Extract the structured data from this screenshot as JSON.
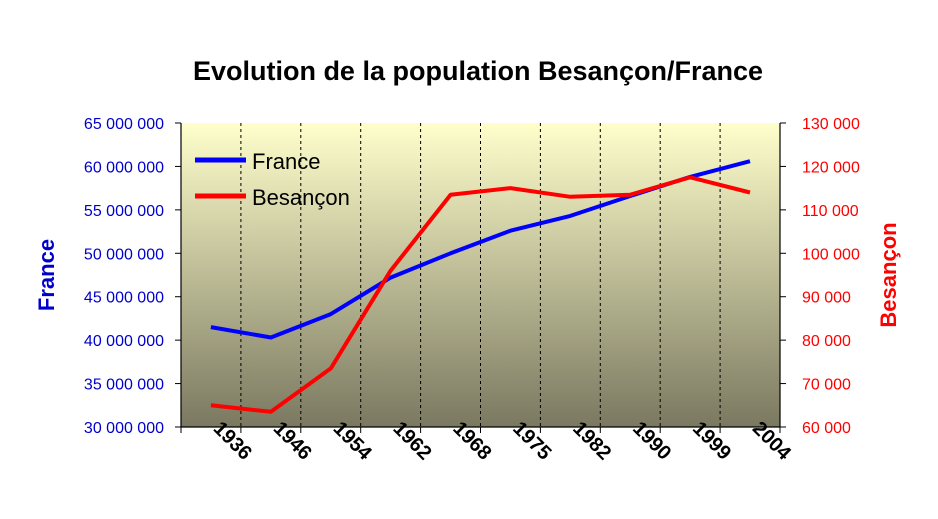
{
  "chart_data": {
    "type": "line",
    "title": "Evolution de la population Besançon/France",
    "categories": [
      "1936",
      "1946",
      "1954",
      "1962",
      "1968",
      "1975",
      "1982",
      "1990",
      "1999",
      "2004"
    ],
    "series": [
      {
        "name": "France",
        "axis": "left",
        "color": "#0000ff",
        "values": [
          41500000,
          40300000,
          43000000,
          47200000,
          50000000,
          52600000,
          54300000,
          56600000,
          58800000,
          60600000
        ]
      },
      {
        "name": "Besançon",
        "axis": "right",
        "color": "#ff0000",
        "values": [
          65000,
          63500,
          73500,
          96000,
          113500,
          115000,
          113000,
          113500,
          117500,
          114000
        ]
      }
    ],
    "left_axis": {
      "label": "France",
      "color": "#0000cc",
      "ylim": [
        30000000,
        65000000
      ],
      "ticks": [
        "30 000 000",
        "35 000 000",
        "40 000 000",
        "45 000 000",
        "50 000 000",
        "55 000 000",
        "60 000 000",
        "65 000 000"
      ]
    },
    "right_axis": {
      "label": "Besançon",
      "color": "#ff0000",
      "ylim": [
        60000,
        130000
      ],
      "ticks": [
        "60 000",
        "70 000",
        "80 000",
        "90 000",
        "100 000",
        "110 000",
        "120 000",
        "130 000"
      ]
    },
    "legend": {
      "position": "top-left"
    },
    "grid": {
      "horizontal": false,
      "vertical": true,
      "vertical_style": "dashed"
    },
    "plot_background": {
      "top": "#ffffcc",
      "bottom": "#7a7860"
    }
  }
}
